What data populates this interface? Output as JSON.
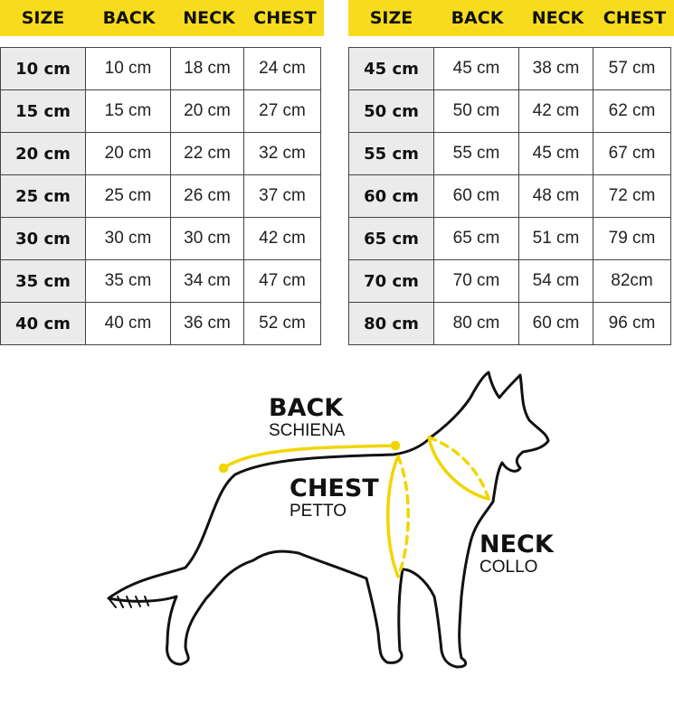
{
  "headers": [
    "SIZE",
    "BACK",
    "NECK",
    "CHEST"
  ],
  "left_table": [
    [
      "10 cm",
      "10 cm",
      "18 cm",
      "24 cm"
    ],
    [
      "15 cm",
      "15 cm",
      "20 cm",
      "27 cm"
    ],
    [
      "20 cm",
      "20 cm",
      "22 cm",
      "32 cm"
    ],
    [
      "25 cm",
      "25 cm",
      "26 cm",
      "37 cm"
    ],
    [
      "30 cm",
      "30 cm",
      "30 cm",
      "42 cm"
    ],
    [
      "35 cm",
      "35 cm",
      "34 cm",
      "47 cm"
    ],
    [
      "40 cm",
      "40 cm",
      "36 cm",
      "52 cm"
    ]
  ],
  "right_table": [
    [
      "45 cm",
      "45 cm",
      "38 cm",
      "57 cm"
    ],
    [
      "50 cm",
      "50 cm",
      "42 cm",
      "62 cm"
    ],
    [
      "55 cm",
      "55 cm",
      "45 cm",
      "67 cm"
    ],
    [
      "60 cm",
      "60 cm",
      "48 cm",
      "72 cm"
    ],
    [
      "65 cm",
      "65 cm",
      "51 cm",
      "79 cm"
    ],
    [
      "70 cm",
      "70 cm",
      "54 cm",
      "82cm"
    ],
    [
      "80 cm",
      "80 cm",
      "60 cm",
      "96 cm"
    ]
  ],
  "diagram": {
    "back": {
      "title": "BACK",
      "subtitle": "SCHIENA"
    },
    "chest": {
      "title": "CHEST",
      "subtitle": "PETTO"
    },
    "neck": {
      "title": "NECK",
      "subtitle": "COLLO"
    },
    "illustration": "dog-silhouette"
  },
  "colors": {
    "accent": "#f7dc1e",
    "size_cell": "#ebebeb",
    "border": "#444444"
  }
}
